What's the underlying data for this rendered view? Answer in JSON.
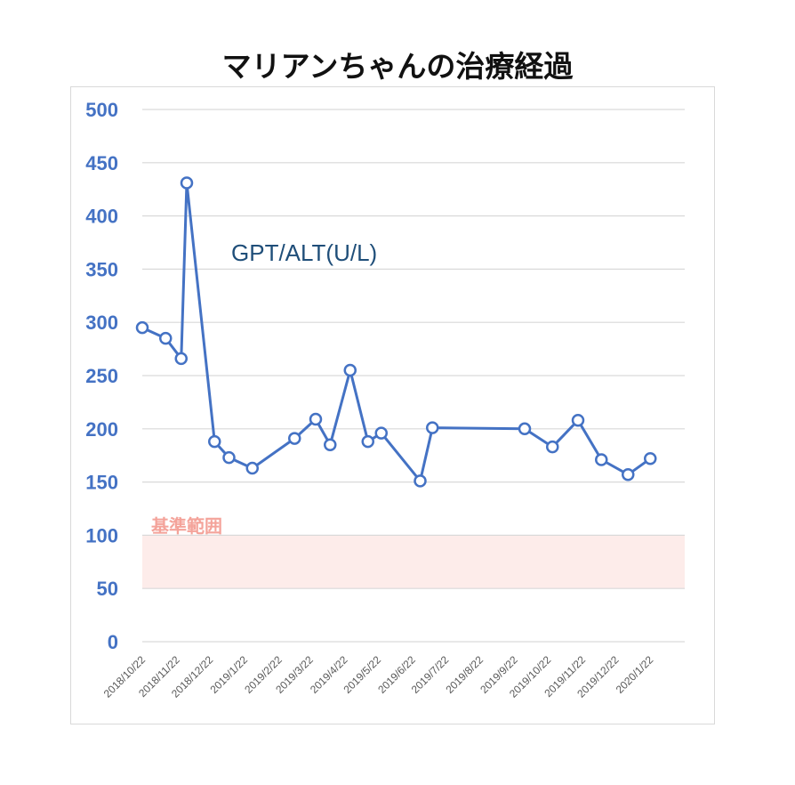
{
  "chart_data": {
    "type": "line",
    "title": "マリアンちゃんの治療経過",
    "xlabel": "",
    "ylabel": "",
    "ylim": [
      0,
      500
    ],
    "yticks": [
      0,
      50,
      100,
      150,
      200,
      250,
      300,
      350,
      400,
      450,
      500
    ],
    "x_tick_labels": [
      "2018/10/22",
      "2018/11/22",
      "2018/12/22",
      "2019/1/22",
      "2019/2/22",
      "2019/3/22",
      "2019/4/22",
      "2019/5/22",
      "2019/6/22",
      "2019/7/22",
      "2019/8/22",
      "2019/9/22",
      "2019/10/22",
      "2019/11/22",
      "2019/12/22",
      "2020/1/22"
    ],
    "x_range": [
      "2018/10/22",
      "2020/2/22"
    ],
    "grid": true,
    "series": [
      {
        "name": "GPT/ALT(U/L)",
        "color": "#4472c4",
        "marker": "open-circle",
        "points": [
          {
            "x": "2018/10/22",
            "y": 295
          },
          {
            "x": "2018/11/12",
            "y": 285
          },
          {
            "x": "2018/11/26",
            "y": 266
          },
          {
            "x": "2018/12/1",
            "y": 431
          },
          {
            "x": "2018/12/26",
            "y": 188
          },
          {
            "x": "2019/1/8",
            "y": 173
          },
          {
            "x": "2019/1/29",
            "y": 163
          },
          {
            "x": "2019/3/8",
            "y": 191
          },
          {
            "x": "2019/3/27",
            "y": 209
          },
          {
            "x": "2019/4/9",
            "y": 185
          },
          {
            "x": "2019/4/27",
            "y": 255
          },
          {
            "x": "2019/5/13",
            "y": 188
          },
          {
            "x": "2019/5/25",
            "y": 196
          },
          {
            "x": "2019/6/29",
            "y": 151
          },
          {
            "x": "2019/7/10",
            "y": 201
          },
          {
            "x": "2019/10/1",
            "y": 200
          },
          {
            "x": "2019/10/26",
            "y": 183
          },
          {
            "x": "2019/11/18",
            "y": 208
          },
          {
            "x": "2019/12/9",
            "y": 171
          },
          {
            "x": "2020/1/2",
            "y": 157
          },
          {
            "x": "2020/1/22",
            "y": 172
          }
        ]
      }
    ],
    "reference_band": {
      "label": "基準範囲",
      "from": 50,
      "to": 100,
      "color": "#fdecea"
    }
  }
}
